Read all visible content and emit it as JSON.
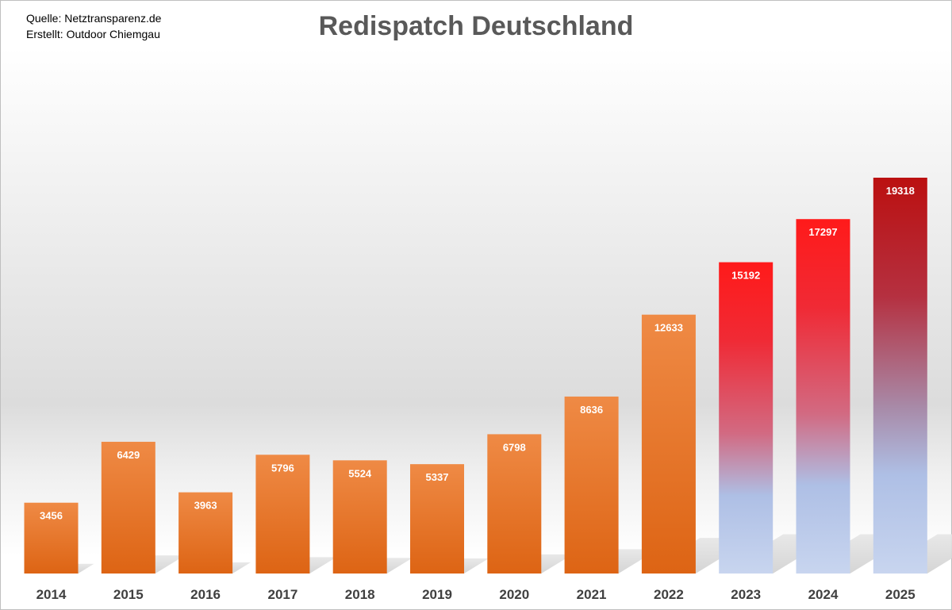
{
  "header": {
    "source_line": "Quelle: Netztransparenz.de",
    "created_line": "Erstellt: Outdoor Chiemgau"
  },
  "chart_data": {
    "type": "bar",
    "title": "Redispatch Deutschland",
    "categories": [
      "2014",
      "2015",
      "2016",
      "2017",
      "2018",
      "2019",
      "2020",
      "2021",
      "2022",
      "2023",
      "2024",
      "2025"
    ],
    "values": [
      3456,
      6429,
      3963,
      5796,
      5524,
      5337,
      6798,
      8636,
      12633,
      15192,
      17297,
      19318
    ],
    "ylim": [
      0,
      19318
    ],
    "grid": false,
    "legend": "none",
    "xlabel": "",
    "ylabel": "",
    "colors": {
      "orange_top": "#ef8a45",
      "orange_bottom": "#dd6414",
      "red_top": "#ff1a1a",
      "red_mid": "#d9647a",
      "blue_low": "#aebfe5",
      "blue_bottom": "#c8d5ef",
      "darkred_top": "#bb1010",
      "darkred_mid": "#a87e9c"
    },
    "bar_styles": [
      "orange",
      "orange",
      "orange",
      "orange",
      "orange",
      "orange",
      "orange",
      "orange",
      "orange",
      "red",
      "red",
      "darkred"
    ]
  }
}
